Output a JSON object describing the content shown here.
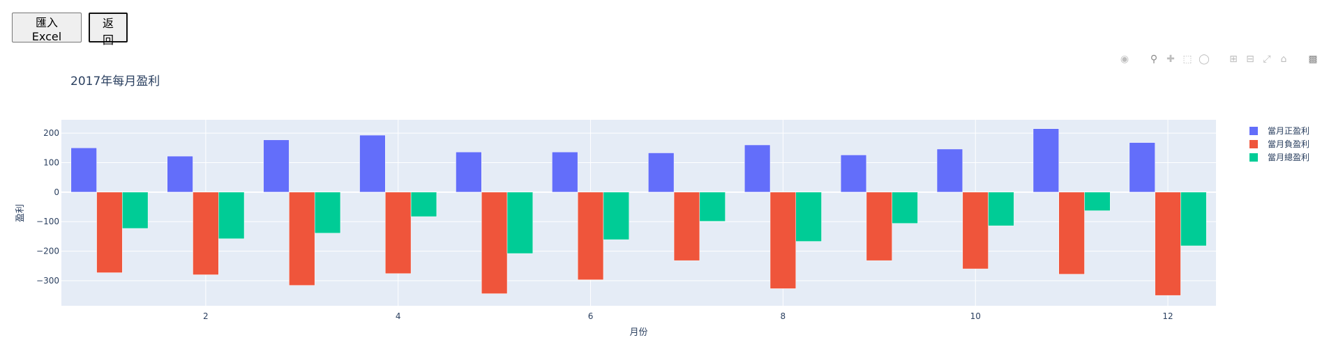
{
  "toolbar": {
    "import_label": "匯入 Excel",
    "back_label": "返回"
  },
  "modebar": {
    "icons": [
      "camera-icon",
      "zoom-icon",
      "pan-icon",
      "box-select-icon",
      "lasso-icon",
      "zoom-in-icon",
      "zoom-out-icon",
      "autoscale-icon",
      "reset-axes-icon",
      "plotly-logo-icon"
    ]
  },
  "colors": {
    "pos": "#636efa",
    "neg": "#ef553b",
    "net": "#00cc96",
    "plot_bg": "#e5ecf6",
    "text": "#2a3f5f"
  },
  "chart_data": {
    "type": "bar",
    "title": "2017年每月盈利",
    "xlabel": "月份",
    "ylabel": "盈利",
    "categories": [
      1,
      2,
      3,
      4,
      5,
      6,
      7,
      8,
      9,
      10,
      11,
      12
    ],
    "x_ticks": [
      2,
      4,
      6,
      8,
      10,
      12
    ],
    "y_ticks": [
      -300,
      -200,
      -100,
      0,
      100,
      200
    ],
    "ylim": [
      -385,
      245
    ],
    "legend_position": "top-right",
    "grid": true,
    "series": [
      {
        "name": "當月正盈利",
        "color": "#636efa",
        "values": [
          150,
          122,
          177,
          193,
          136,
          136,
          133,
          160,
          126,
          146,
          215,
          168
        ]
      },
      {
        "name": "當月負盈利",
        "color": "#ef553b",
        "values": [
          -273,
          -280,
          -316,
          -276,
          -344,
          -297,
          -232,
          -327,
          -232,
          -260,
          -278,
          -350
        ]
      },
      {
        "name": "當月總盈利",
        "color": "#00cc96",
        "values": [
          -123,
          -158,
          -139,
          -83,
          -208,
          -161,
          -99,
          -167,
          -106,
          -114,
          -63,
          -182
        ]
      }
    ]
  }
}
